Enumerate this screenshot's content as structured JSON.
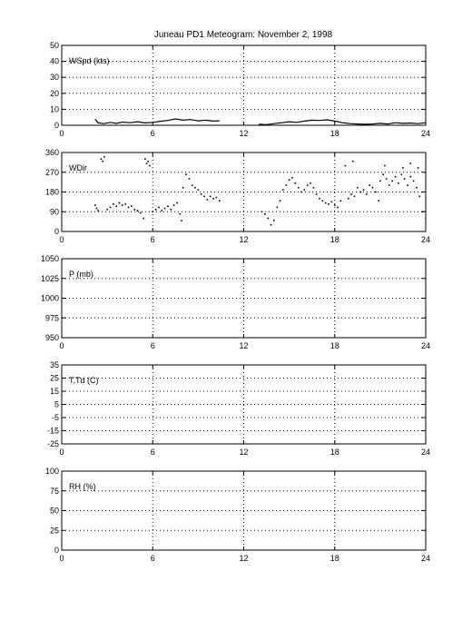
{
  "figure": {
    "title": "Juneau PD1 Meteogram:  November  2, 1998"
  },
  "chart_data": [
    {
      "type": "line",
      "label": "WSpd (kts)",
      "xlim": [
        0,
        24
      ],
      "ylim": [
        0,
        50
      ],
      "xticks": [
        0,
        6,
        12,
        18,
        24
      ],
      "yticks": [
        0,
        10,
        20,
        30,
        40,
        50
      ],
      "grid": true,
      "series": [
        {
          "segments": [
            [
              [
                2.2,
                3.8
              ],
              [
                2.4,
                1.5
              ],
              [
                2.8,
                1.0
              ],
              [
                3.2,
                1.8
              ],
              [
                3.6,
                1.2
              ],
              [
                4.0,
                2.0
              ],
              [
                4.5,
                1.6
              ],
              [
                5.0,
                2.2
              ],
              [
                5.5,
                1.5
              ],
              [
                6.0,
                1.8
              ],
              [
                6.5,
                2.5
              ],
              [
                7.0,
                3.0
              ],
              [
                7.5,
                4.0
              ],
              [
                8.0,
                3.2
              ],
              [
                8.5,
                3.6
              ],
              [
                9.0,
                2.8
              ],
              [
                9.5,
                3.2
              ],
              [
                10.0,
                2.6
              ],
              [
                10.4,
                2.8
              ]
            ],
            [
              [
                13.0,
                0.6
              ],
              [
                13.5,
                0.4
              ],
              [
                14.0,
                1.0
              ],
              [
                14.5,
                1.6
              ],
              [
                15.0,
                2.2
              ],
              [
                15.5,
                1.8
              ],
              [
                16.0,
                2.6
              ],
              [
                16.5,
                3.2
              ],
              [
                17.0,
                3.0
              ],
              [
                17.5,
                3.4
              ],
              [
                18.0,
                2.6
              ],
              [
                18.5,
                1.6
              ],
              [
                19.0,
                1.0
              ],
              [
                19.5,
                0.8
              ],
              [
                20.0,
                0.6
              ],
              [
                20.5,
                0.8
              ],
              [
                21.0,
                1.2
              ],
              [
                21.5,
                0.8
              ],
              [
                22.0,
                1.6
              ],
              [
                22.5,
                1.2
              ],
              [
                23.0,
                1.4
              ],
              [
                23.5,
                1.0
              ],
              [
                24.0,
                1.6
              ]
            ]
          ]
        }
      ]
    },
    {
      "type": "scatter",
      "label": "WDir",
      "xlim": [
        0,
        24
      ],
      "ylim": [
        0,
        360
      ],
      "xticks": [
        0,
        6,
        12,
        18,
        24
      ],
      "yticks": [
        0,
        90,
        180,
        270,
        360
      ],
      "grid": true,
      "series": [
        {
          "points": [
            [
              2.2,
              120
            ],
            [
              2.3,
              105
            ],
            [
              2.4,
              95
            ],
            [
              2.6,
              330
            ],
            [
              2.7,
              320
            ],
            [
              2.8,
              340
            ],
            [
              3.0,
              100
            ],
            [
              3.2,
              110
            ],
            [
              3.4,
              125
            ],
            [
              3.6,
              115
            ],
            [
              3.8,
              130
            ],
            [
              4.0,
              120
            ],
            [
              4.2,
              125
            ],
            [
              4.4,
              110
            ],
            [
              4.6,
              115
            ],
            [
              4.8,
              100
            ],
            [
              5.0,
              95
            ],
            [
              5.2,
              85
            ],
            [
              5.4,
              60
            ],
            [
              5.5,
              330
            ],
            [
              5.6,
              310
            ],
            [
              5.7,
              320
            ],
            [
              5.8,
              300
            ],
            [
              6.0,
              90
            ],
            [
              6.2,
              100
            ],
            [
              6.4,
              110
            ],
            [
              6.6,
              95
            ],
            [
              6.8,
              105
            ],
            [
              7.0,
              115
            ],
            [
              7.2,
              100
            ],
            [
              7.4,
              120
            ],
            [
              7.6,
              130
            ],
            [
              7.8,
              80
            ],
            [
              7.9,
              50
            ],
            [
              8.0,
              200
            ],
            [
              8.2,
              260
            ],
            [
              8.4,
              240
            ],
            [
              8.6,
              210
            ],
            [
              8.8,
              200
            ],
            [
              9.0,
              190
            ],
            [
              9.2,
              170
            ],
            [
              9.4,
              160
            ],
            [
              9.6,
              145
            ],
            [
              9.8,
              160
            ],
            [
              10.0,
              150
            ],
            [
              10.2,
              155
            ],
            [
              10.4,
              140
            ],
            [
              13.2,
              90
            ],
            [
              13.4,
              80
            ],
            [
              13.6,
              60
            ],
            [
              13.8,
              30
            ],
            [
              14.0,
              50
            ],
            [
              14.2,
              110
            ],
            [
              14.4,
              140
            ],
            [
              14.6,
              190
            ],
            [
              14.8,
              210
            ],
            [
              15.0,
              235
            ],
            [
              15.2,
              245
            ],
            [
              15.4,
              220
            ],
            [
              15.6,
              200
            ],
            [
              15.8,
              180
            ],
            [
              16.0,
              190
            ],
            [
              16.2,
              210
            ],
            [
              16.4,
              220
            ],
            [
              16.6,
              200
            ],
            [
              16.8,
              170
            ],
            [
              17.0,
              150
            ],
            [
              17.2,
              140
            ],
            [
              17.4,
              130
            ],
            [
              17.6,
              125
            ],
            [
              17.8,
              135
            ],
            [
              18.0,
              120
            ],
            [
              18.2,
              110
            ],
            [
              18.4,
              140
            ],
            [
              18.7,
              300
            ],
            [
              18.9,
              150
            ],
            [
              19.1,
              170
            ],
            [
              19.3,
              160
            ],
            [
              19.5,
              200
            ],
            [
              19.7,
              180
            ],
            [
              19.9,
              190
            ],
            [
              20.1,
              170
            ],
            [
              20.3,
              210
            ],
            [
              20.5,
              200
            ],
            [
              20.7,
              180
            ],
            [
              20.9,
              140
            ],
            [
              21.0,
              230
            ],
            [
              21.2,
              260
            ],
            [
              21.4,
              240
            ],
            [
              21.6,
              210
            ],
            [
              21.8,
              230
            ],
            [
              22.0,
              250
            ],
            [
              22.2,
              220
            ],
            [
              22.4,
              260
            ],
            [
              22.6,
              240
            ],
            [
              22.8,
              210
            ],
            [
              23.0,
              250
            ],
            [
              23.2,
              230
            ],
            [
              23.4,
              200
            ],
            [
              23.6,
              160
            ],
            [
              23.8,
              90
            ],
            [
              24.0,
              60
            ],
            [
              19.2,
              320
            ],
            [
              21.3,
              300
            ],
            [
              22.5,
              290
            ],
            [
              23.0,
              310
            ],
            [
              23.5,
              290
            ]
          ]
        }
      ]
    },
    {
      "type": "line",
      "label": "P (mb)",
      "xlim": [
        0,
        24
      ],
      "ylim": [
        950,
        1050
      ],
      "xticks": [
        0,
        6,
        12,
        18,
        24
      ],
      "yticks": [
        950,
        975,
        1000,
        1025,
        1050
      ],
      "grid": true,
      "series": []
    },
    {
      "type": "line",
      "label": "T,Td (C)",
      "xlim": [
        0,
        24
      ],
      "ylim": [
        -25,
        35
      ],
      "xticks": [
        0,
        6,
        12,
        18,
        24
      ],
      "yticks": [
        -25,
        -15,
        -5,
        5,
        15,
        25,
        35
      ],
      "grid": true,
      "series": []
    },
    {
      "type": "line",
      "label": "RH (%)",
      "xlim": [
        0,
        24
      ],
      "ylim": [
        0,
        100
      ],
      "xticks": [
        0,
        6,
        12,
        18,
        24
      ],
      "yticks": [
        0,
        25,
        50,
        75,
        100
      ],
      "grid": true,
      "series": []
    }
  ]
}
